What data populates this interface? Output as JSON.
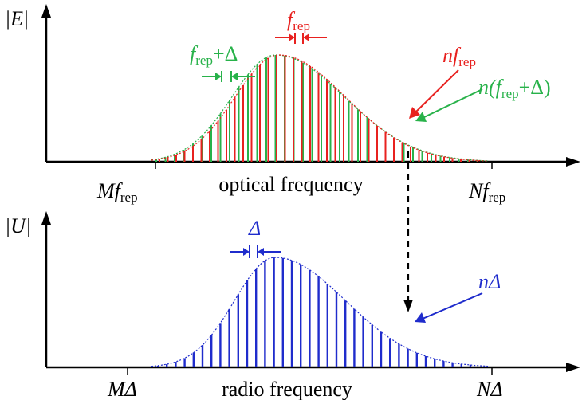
{
  "top_panel": {
    "y_label": "|E|",
    "x_label": "optical frequency",
    "start_mark": {
      "main": "Mf",
      "sub": "rep"
    },
    "end_mark": {
      "main": "Nf",
      "sub": "rep"
    },
    "spacing_red": {
      "main": "f",
      "sub": "rep"
    },
    "spacing_green": {
      "main": "f",
      "sub": "rep",
      "suffix": "+Δ"
    },
    "label_red": {
      "main": "nf",
      "sub": "rep"
    },
    "label_green": {
      "prefix": "n(",
      "main": "f",
      "sub": "rep",
      "suffix": "+Δ)"
    }
  },
  "bottom_panel": {
    "y_label": "|U|",
    "x_label": "radio frequency",
    "start_mark": "MΔ",
    "end_mark": "NΔ",
    "spacing_label": "Δ",
    "line_label": "nΔ"
  },
  "colors": {
    "red": "#e8211f",
    "green": "#28b24a",
    "blue": "#1f2ccc",
    "axis": "#000000"
  }
}
